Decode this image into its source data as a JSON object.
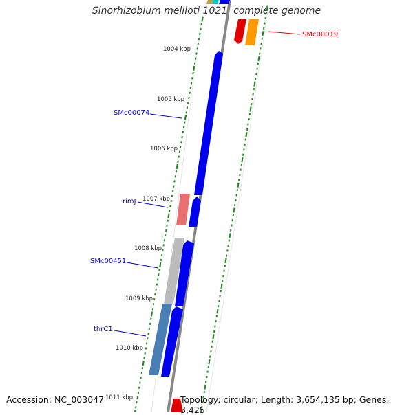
{
  "title": "Sinorhizobium meliloti 1021, complete genome",
  "accession": "Accession: NC_003047",
  "topology": "Topology: circular; Length: 3,654,135 bp; Genes: 3,425",
  "position_labels": [
    "1004 kbp",
    "1005 kbp",
    "1006 kbp",
    "1007 kbp",
    "1008 kbp",
    "1009 kbp",
    "1010 kbp",
    "1011 kbp"
  ],
  "gene_labels": [
    {
      "name": "SMc00019",
      "color": "#e00000"
    },
    {
      "name": "SMc00074",
      "color": "#0000cc"
    },
    {
      "name": "rimJ",
      "color": "#0000cc"
    },
    {
      "name": "SMc00451",
      "color": "#0000cc"
    },
    {
      "name": "thrC1",
      "color": "#0000cc"
    }
  ],
  "colors": {
    "backbone": "#888888",
    "tick": "#228b22",
    "forward_gene": "#0000ee",
    "red_gene": "#e00000",
    "orange_gene": "#ff9900",
    "pink_gene": "#e87070",
    "grey_gene": "#bbbbbb",
    "steel_gene": "#4a7fb5"
  }
}
